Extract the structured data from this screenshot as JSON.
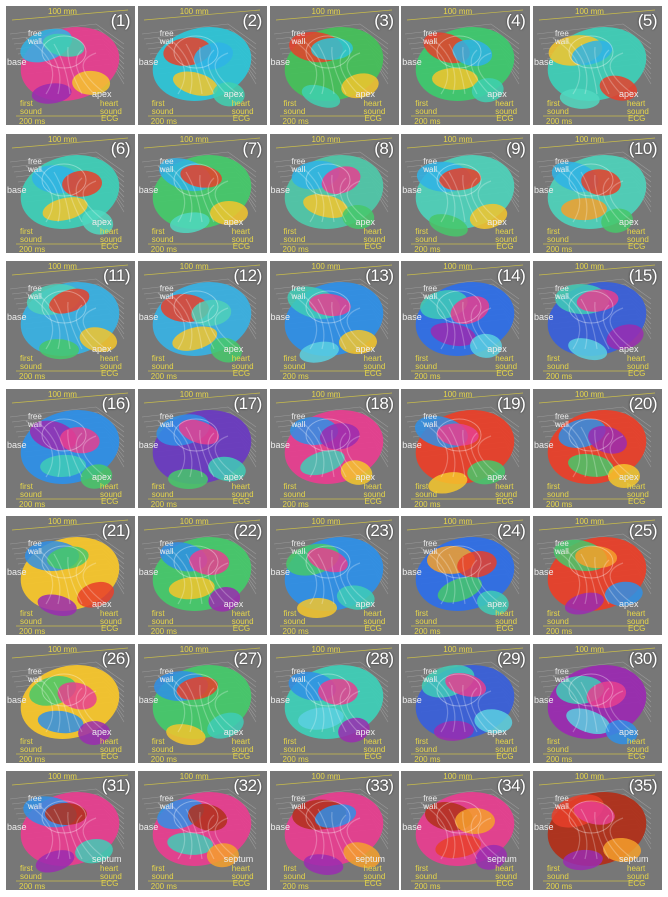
{
  "figure": {
    "panels": [
      {
        "label": "(1)",
        "colors": [
          "#e63f8f",
          "#2fb3e6",
          "#40d0b0",
          "#f5c52c",
          "#9a2bb0"
        ]
      },
      {
        "label": "(2)",
        "colors": [
          "#2ec4d6",
          "#e8402a",
          "#2fb3e6",
          "#f5c52c",
          "#40d0b0"
        ]
      },
      {
        "label": "(3)",
        "colors": [
          "#46c05a",
          "#e8402a",
          "#2ec4d6",
          "#f5c52c",
          "#40d0b0"
        ]
      },
      {
        "label": "(4)",
        "colors": [
          "#3ec86e",
          "#e8402a",
          "#2fb3e6",
          "#f5c52c",
          "#40d0b0"
        ]
      },
      {
        "label": "(5)",
        "colors": [
          "#3fcdb6",
          "#f5c52c",
          "#2fb3e6",
          "#e8402a",
          "#50d8c0"
        ]
      },
      {
        "label": "(6)",
        "colors": [
          "#3fcdb6",
          "#2fb3e6",
          "#e8402a",
          "#f5c52c",
          "#50d8c0"
        ]
      },
      {
        "label": "(7)",
        "colors": [
          "#46c86a",
          "#2fb3e6",
          "#e8402a",
          "#f5c52c",
          "#50d8c0"
        ]
      },
      {
        "label": "(8)",
        "colors": [
          "#50c6a8",
          "#2fb3e6",
          "#e63f8f",
          "#f5c52c",
          "#46c86a"
        ]
      },
      {
        "label": "(9)",
        "colors": [
          "#4fd0b8",
          "#2fb3e6",
          "#e8402a",
          "#f5c52c",
          "#46c86a"
        ]
      },
      {
        "label": "(10)",
        "colors": [
          "#4fd0b8",
          "#2fb3e6",
          "#e8402a",
          "#f5a02c",
          "#46c86a"
        ]
      },
      {
        "label": "(11)",
        "colors": [
          "#3ab0e0",
          "#4fd0b8",
          "#e8402a",
          "#f5c52c",
          "#46c86a"
        ]
      },
      {
        "label": "(12)",
        "colors": [
          "#3ab0e0",
          "#e8402a",
          "#4fd0b8",
          "#f5c52c",
          "#46c86a"
        ]
      },
      {
        "label": "(13)",
        "colors": [
          "#2f8fe6",
          "#3fcdb6",
          "#e63f8f",
          "#f5c52c",
          "#5ad0e0"
        ]
      },
      {
        "label": "(14)",
        "colors": [
          "#2f6fe6",
          "#3fcdb6",
          "#e63f8f",
          "#9a2bb0",
          "#5ad0e0"
        ]
      },
      {
        "label": "(15)",
        "colors": [
          "#3a60d8",
          "#3fcdb6",
          "#e63f8f",
          "#9a2bb0",
          "#5ad0e0"
        ]
      },
      {
        "label": "(16)",
        "colors": [
          "#2f8fe6",
          "#9a2bb0",
          "#e63f8f",
          "#3fcdb6",
          "#46c86a"
        ]
      },
      {
        "label": "(17)",
        "colors": [
          "#6a3bc0",
          "#2f8fe6",
          "#e63f8f",
          "#3fcdb6",
          "#46c86a"
        ]
      },
      {
        "label": "(18)",
        "colors": [
          "#e63f8f",
          "#2f8fe6",
          "#9a2bb0",
          "#3fcdb6",
          "#f5c52c"
        ]
      },
      {
        "label": "(19)",
        "colors": [
          "#e8402a",
          "#2f8fe6",
          "#e63f8f",
          "#46c86a",
          "#f5c52c"
        ]
      },
      {
        "label": "(20)",
        "colors": [
          "#e8402a",
          "#2f8fe6",
          "#9a2bb0",
          "#46c86a",
          "#f5c52c"
        ]
      },
      {
        "label": "(21)",
        "colors": [
          "#f5c52c",
          "#2f8fe6",
          "#46c86a",
          "#e8402a",
          "#9a2bb0"
        ]
      },
      {
        "label": "(22)",
        "colors": [
          "#46c86a",
          "#2f8fe6",
          "#e63f8f",
          "#f5c52c",
          "#9a2bb0"
        ]
      },
      {
        "label": "(23)",
        "colors": [
          "#2f8fe6",
          "#46c86a",
          "#e63f8f",
          "#3fcdb6",
          "#f5c52c"
        ]
      },
      {
        "label": "(24)",
        "colors": [
          "#2f6fe6",
          "#f5a02c",
          "#e8402a",
          "#46c86a",
          "#3fcdb6"
        ]
      },
      {
        "label": "(25)",
        "colors": [
          "#e8402a",
          "#46c86a",
          "#f5a02c",
          "#2f8fe6",
          "#9a2bb0"
        ]
      },
      {
        "label": "(26)",
        "colors": [
          "#f5c52c",
          "#46c86a",
          "#e63f8f",
          "#2f8fe6",
          "#9a2bb0"
        ]
      },
      {
        "label": "(27)",
        "colors": [
          "#46c86a",
          "#2f8fe6",
          "#e8402a",
          "#3fcdb6",
          "#f5c52c"
        ]
      },
      {
        "label": "(28)",
        "colors": [
          "#3fcdb6",
          "#2f8fe6",
          "#e63f8f",
          "#5ad0e0",
          "#9a2bb0"
        ]
      },
      {
        "label": "(29)",
        "colors": [
          "#3a60d8",
          "#3fcdb6",
          "#e63f8f",
          "#5ad0e0",
          "#9a2bb0"
        ]
      },
      {
        "label": "(30)",
        "colors": [
          "#9a2bb0",
          "#3fcdb6",
          "#e63f8f",
          "#5ad0e0",
          "#2f8fe6"
        ]
      },
      {
        "label": "(31)",
        "colors": [
          "#e63f8f",
          "#2f8fe6",
          "#b0301a",
          "#3fcdb6",
          "#9a2bb0"
        ]
      },
      {
        "label": "(32)",
        "colors": [
          "#e63f8f",
          "#2f8fe6",
          "#b0301a",
          "#3fcdb6",
          "#f5a02c"
        ]
      },
      {
        "label": "(33)",
        "colors": [
          "#e63f8f",
          "#b0301a",
          "#2f8fe6",
          "#f5a02c",
          "#9a2bb0"
        ]
      },
      {
        "label": "(34)",
        "colors": [
          "#e63f8f",
          "#b0301a",
          "#f5a02c",
          "#e8402a",
          "#9a2bb0"
        ]
      },
      {
        "label": "(35)",
        "colors": [
          "#b0301a",
          "#e8402a",
          "#e63f8f",
          "#f5a02c",
          "#9a2bb0"
        ]
      }
    ]
  },
  "annotations": {
    "scale_top": "100 mm",
    "free_wall": "free wall",
    "base": "base",
    "apex": "apex",
    "septum": "septum",
    "first_sound": "first sound",
    "heart_sound": "heart sound",
    "ecg": "ECG",
    "scale_bottom": "200 ms"
  },
  "theme": {
    "panel_bg": "#777777",
    "label_yellow": "#e6d64a",
    "label_white": "#ececec"
  }
}
